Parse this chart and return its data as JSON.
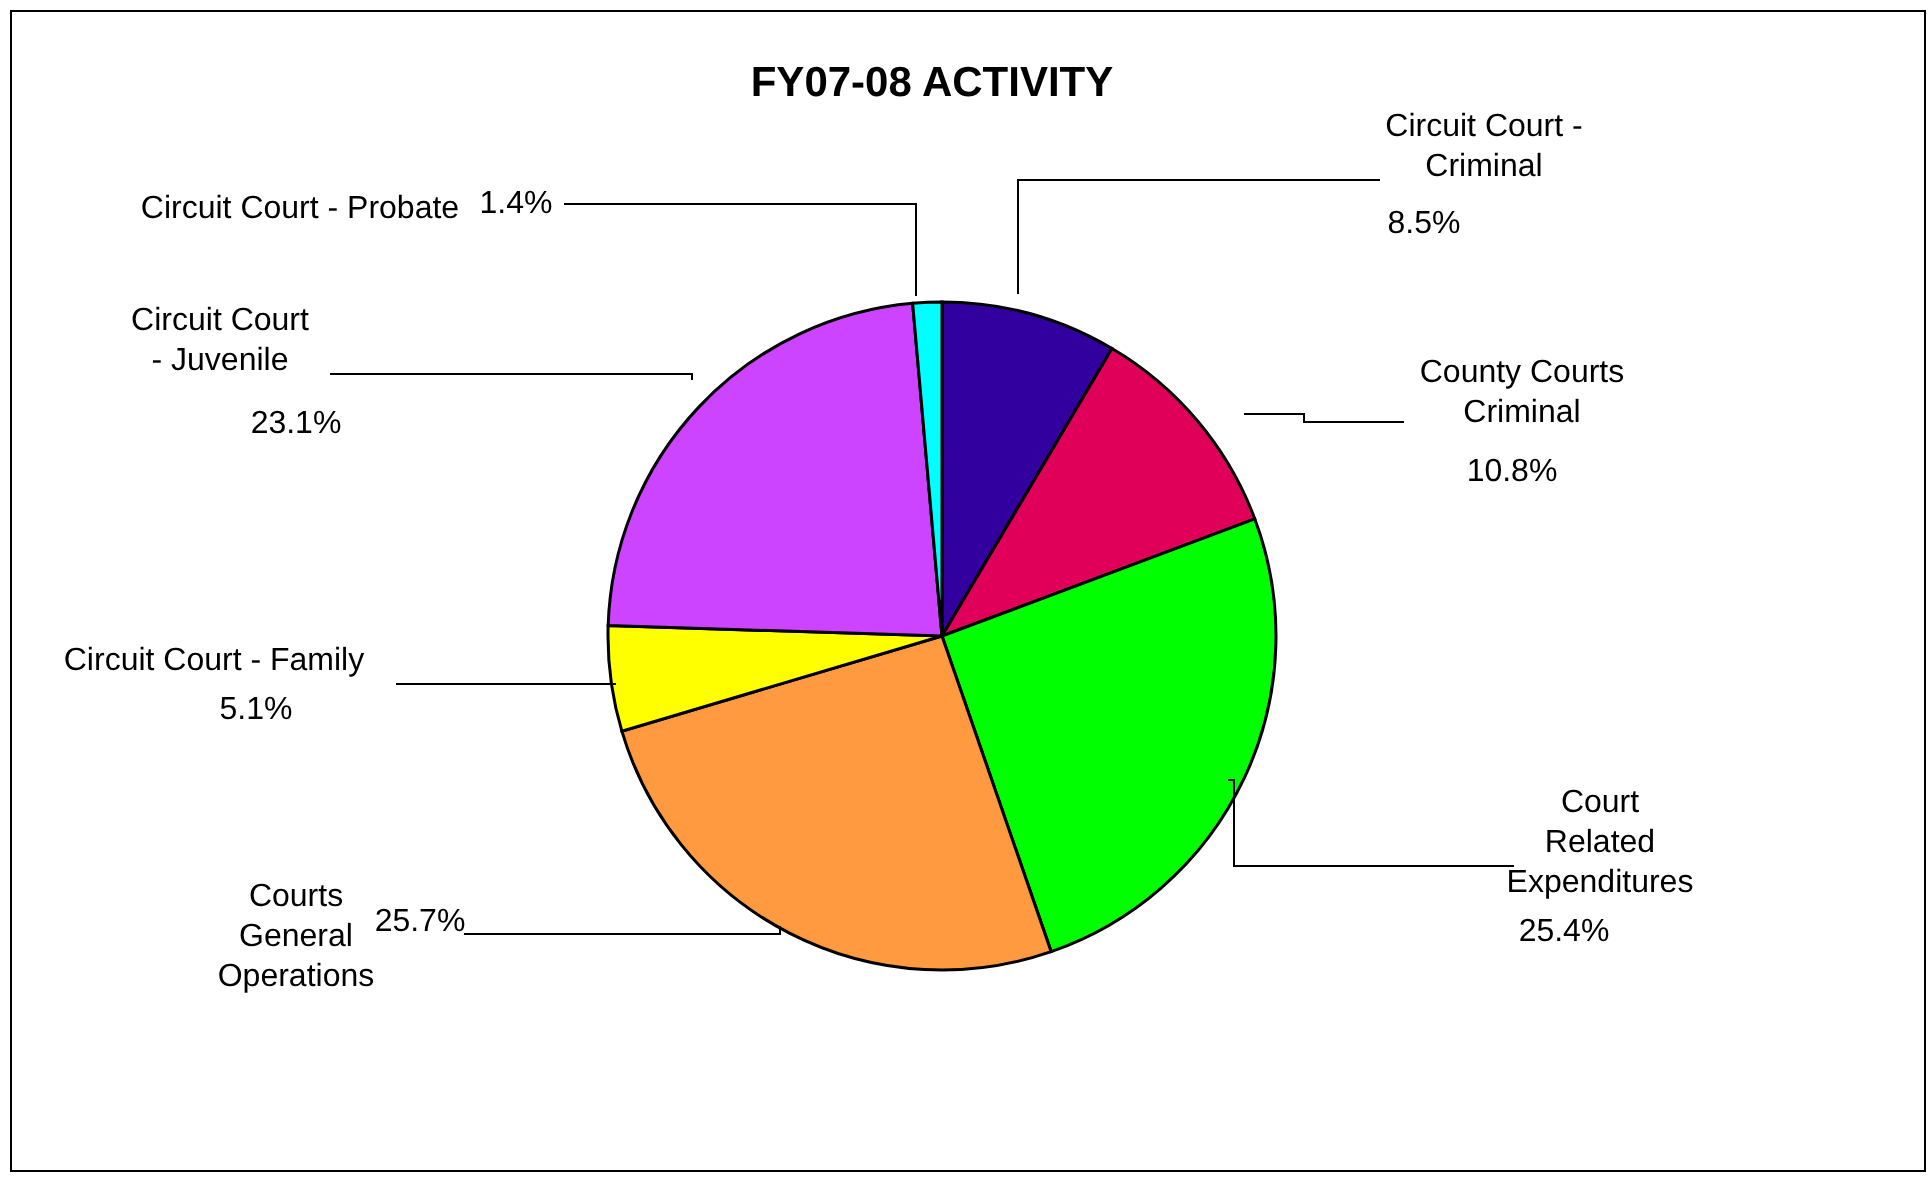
{
  "chart_data": {
    "type": "pie",
    "title": "FY07-08 ACTIVITY",
    "categories": [
      "Circuit Court - Criminal",
      "County Courts Criminal",
      "Court Related Expenditures",
      "Courts General Operations",
      "Circuit Court - Family",
      "Circuit Court - Juvenile",
      "Circuit Court - Probate"
    ],
    "values": [
      8.5,
      10.8,
      25.4,
      25.7,
      5.1,
      23.1,
      1.4
    ],
    "colors": [
      "#3300a0",
      "#e0005a",
      "#00ff00",
      "#ff9a40",
      "#ffff00",
      "#cc44ff",
      "#00ffff"
    ],
    "value_labels": [
      "8.5%",
      "10.8%",
      "25.4%",
      "25.7%",
      "5.1%",
      "23.1%",
      "1.4%"
    ],
    "legend": false
  }
}
